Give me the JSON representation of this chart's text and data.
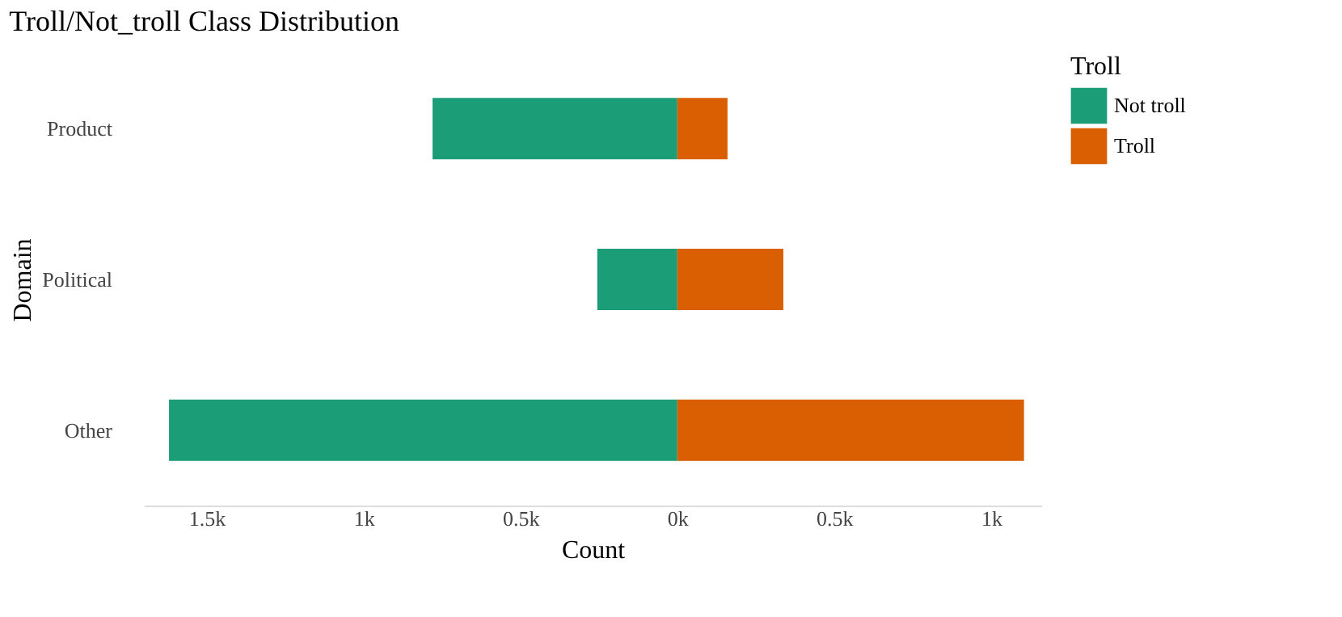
{
  "chart_data": {
    "type": "bar",
    "orientation": "horizontal",
    "stacked": true,
    "title": "Troll/Not_troll Class Distribution",
    "xlabel": "Count",
    "ylabel": "Domain",
    "legend_title": "Troll",
    "legend": "right",
    "grid": false,
    "categories": [
      "Product",
      "Political",
      "Other"
    ],
    "series": [
      {
        "name": "Not troll",
        "color": "#1b9e77",
        "values": [
          -780,
          -255,
          -1620
        ]
      },
      {
        "name": "Troll",
        "color": "#d95f02",
        "values": [
          160,
          338,
          1105
        ]
      }
    ],
    "xlim": [
      -1700,
      1160
    ],
    "xticks": [
      {
        "value": -1500,
        "label": "1.5k"
      },
      {
        "value": -1000,
        "label": "1k"
      },
      {
        "value": -500,
        "label": "0.5k"
      },
      {
        "value": 0,
        "label": "0k"
      },
      {
        "value": 500,
        "label": "0.5k"
      },
      {
        "value": 1000,
        "label": "1k"
      }
    ]
  }
}
